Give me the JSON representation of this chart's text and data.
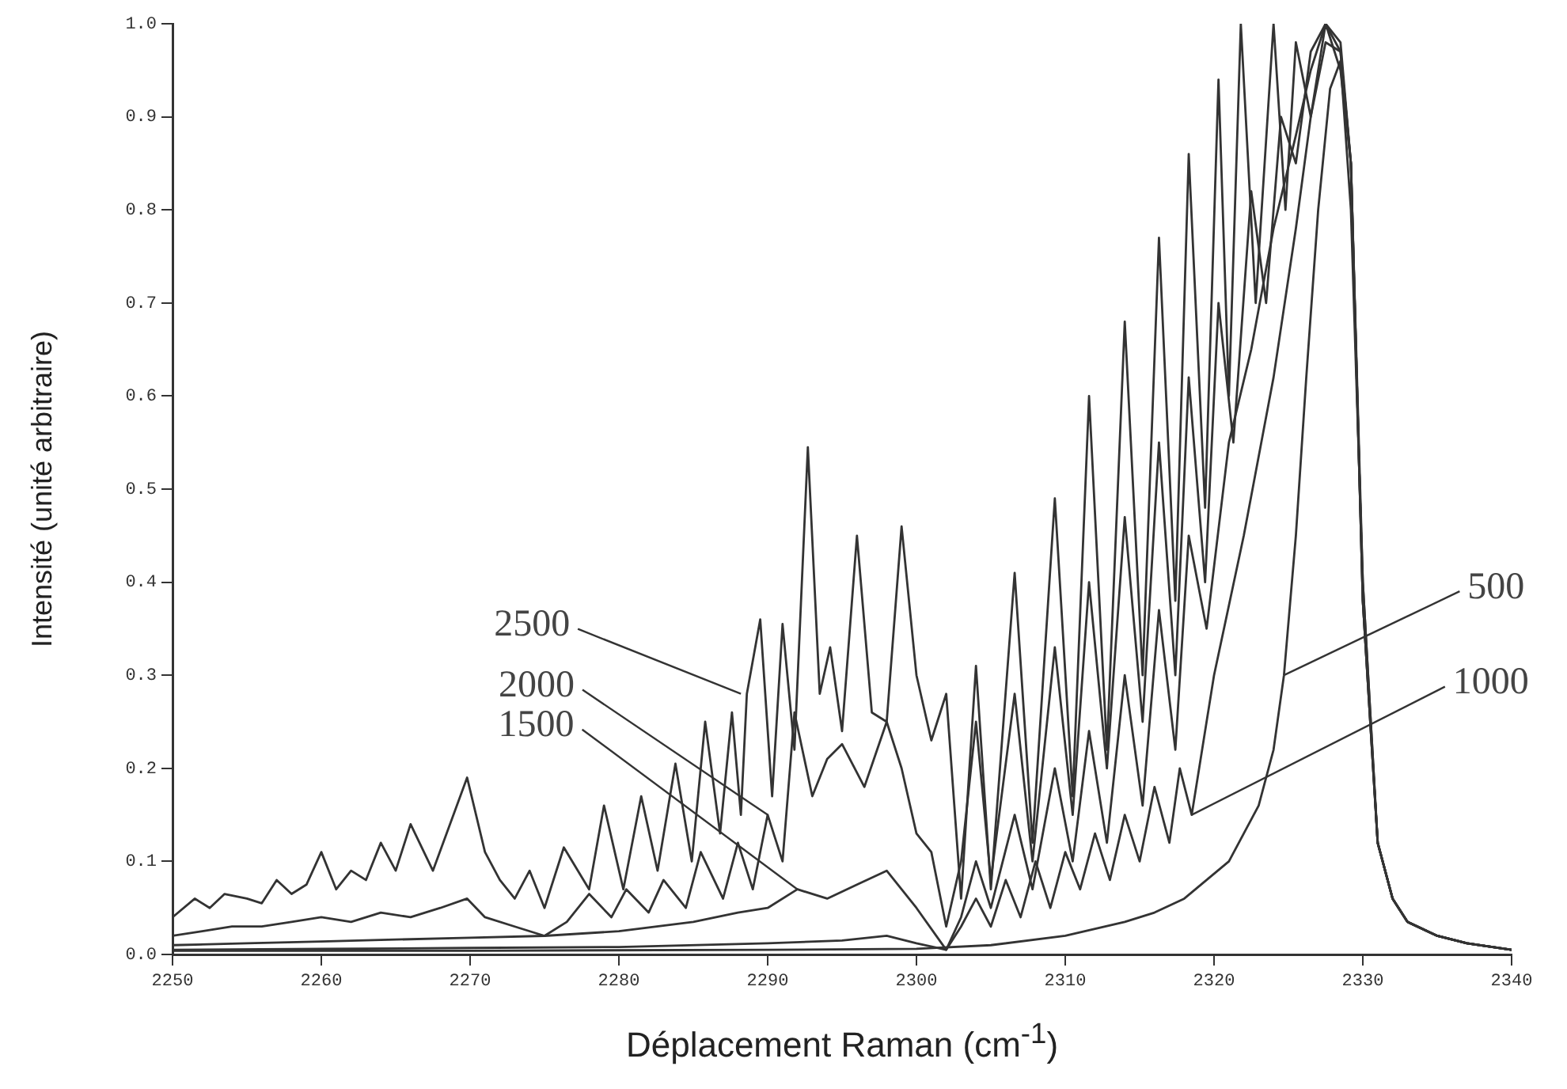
{
  "chart_data": {
    "type": "line",
    "xlabel": "Déplacement Raman (cm$^{-1}$)",
    "ylabel": "Intensité (unité arbitraire)",
    "xlim": [
      2250,
      2340
    ],
    "xticks": [
      2250,
      2260,
      2270,
      2280,
      2290,
      2300,
      2310,
      2320,
      2330,
      2340
    ],
    "ylim": [
      0,
      1
    ],
    "yticks": [
      {
        "value": 0,
        "label": "0.0"
      },
      0.1,
      0.2,
      0.3,
      0.4,
      0.5,
      0.6,
      0.7,
      0.8,
      0.9,
      {
        "value": 1,
        "label": "1.0"
      }
    ],
    "grid": false,
    "legend": false,
    "marker": "none",
    "line_style": "solid",
    "series": [
      {
        "color": "#333333",
        "x": [
          2250,
          2251.5,
          2252.5,
          2253.5,
          2255,
          2256,
          2257,
          2258,
          2259,
          2260,
          2261,
          2262,
          2263,
          2264,
          2265,
          2266,
          2267.5,
          2269.8,
          2271,
          2272,
          2273,
          2274,
          2275,
          2276.3,
          2278,
          2279,
          2280.3,
          2281.5,
          2282.6,
          2283.8,
          2284.9,
          2285.8,
          2286.8,
          2287.6,
          2288.2,
          2288.6,
          2289.5,
          2290.3,
          2291,
          2291.8,
          2292.7,
          2293.5,
          2294.2,
          2295,
          2296,
          2297,
          2298,
          2299,
          2300,
          2301,
          2302,
          2303,
          2304,
          2305,
          2306.6,
          2307.8,
          2309.3,
          2310.5,
          2311.6,
          2312.8,
          2314,
          2315.2,
          2316.3,
          2317.4,
          2318.3,
          2319.4,
          2320.3,
          2321,
          2321.8,
          2322.8,
          2324,
          2324.8,
          2325.5,
          2326.5,
          2327.5,
          2328.5,
          2329.2,
          2330,
          2331,
          2332,
          2333,
          2335,
          2337,
          2340
        ],
        "values": [
          0.04,
          0.06,
          0.05,
          0.065,
          0.06,
          0.055,
          0.08,
          0.065,
          0.075,
          0.11,
          0.07,
          0.09,
          0.08,
          0.12,
          0.09,
          0.14,
          0.09,
          0.19,
          0.11,
          0.08,
          0.06,
          0.09,
          0.05,
          0.115,
          0.07,
          0.16,
          0.07,
          0.17,
          0.09,
          0.205,
          0.1,
          0.25,
          0.13,
          0.26,
          0.15,
          0.28,
          0.36,
          0.17,
          0.355,
          0.22,
          0.545,
          0.28,
          0.33,
          0.24,
          0.45,
          0.26,
          0.25,
          0.46,
          0.3,
          0.23,
          0.28,
          0.06,
          0.31,
          0.07,
          0.41,
          0.12,
          0.49,
          0.17,
          0.6,
          0.22,
          0.68,
          0.3,
          0.77,
          0.38,
          0.86,
          0.48,
          0.94,
          0.6,
          1.0,
          0.7,
          1.0,
          0.8,
          0.98,
          0.9,
          1.0,
          0.95,
          0.85,
          0.4,
          0.12,
          0.06,
          0.035,
          0.02,
          0.012,
          0.005
        ]
      },
      {
        "color": "#333333",
        "x": [
          2250,
          2252,
          2254,
          2256,
          2258,
          2260,
          2262,
          2264,
          2266,
          2268,
          2269.8,
          2271,
          2273,
          2275,
          2276.5,
          2278,
          2279.5,
          2280.5,
          2282,
          2283,
          2284.5,
          2285.5,
          2287,
          2288,
          2289,
          2290,
          2291,
          2291.8,
          2293,
          2294,
          2295,
          2296.5,
          2298,
          2299,
          2300,
          2301,
          2302,
          2303,
          2304,
          2305,
          2306.6,
          2307.8,
          2309.3,
          2310.5,
          2311.6,
          2312.8,
          2314,
          2315.2,
          2316.3,
          2317.4,
          2318.3,
          2319.4,
          2320.3,
          2321.3,
          2322.5,
          2323.5,
          2324.5,
          2325.5,
          2326.5,
          2327.5,
          2328.5,
          2329.2,
          2330,
          2331,
          2332,
          2333,
          2335,
          2337,
          2340
        ],
        "values": [
          0.02,
          0.025,
          0.03,
          0.03,
          0.035,
          0.04,
          0.035,
          0.045,
          0.04,
          0.05,
          0.06,
          0.04,
          0.03,
          0.02,
          0.035,
          0.065,
          0.04,
          0.07,
          0.045,
          0.08,
          0.05,
          0.11,
          0.06,
          0.12,
          0.07,
          0.15,
          0.1,
          0.26,
          0.17,
          0.21,
          0.226,
          0.18,
          0.25,
          0.2,
          0.13,
          0.11,
          0.03,
          0.1,
          0.25,
          0.08,
          0.28,
          0.1,
          0.33,
          0.15,
          0.4,
          0.2,
          0.47,
          0.25,
          0.55,
          0.3,
          0.62,
          0.4,
          0.7,
          0.55,
          0.82,
          0.7,
          0.9,
          0.85,
          0.97,
          1.0,
          0.98,
          0.85,
          0.38,
          0.12,
          0.06,
          0.035,
          0.02,
          0.012,
          0.005
        ]
      },
      {
        "color": "#333333",
        "x": [
          2250,
          2255,
          2260,
          2265,
          2270,
          2275,
          2280,
          2285,
          2288,
          2290,
          2292,
          2294,
          2296,
          2298,
          2300,
          2302,
          2303,
          2304,
          2305,
          2306.6,
          2307.8,
          2309.3,
          2310.5,
          2311.6,
          2312.8,
          2314,
          2315.2,
          2316.3,
          2317.4,
          2318.3,
          2319.5,
          2321,
          2322.5,
          2324,
          2325.5,
          2326.5,
          2327.5,
          2328.5,
          2329.2,
          2330,
          2331,
          2332,
          2333,
          2335,
          2337,
          2340
        ],
        "values": [
          0.01,
          0.012,
          0.014,
          0.016,
          0.018,
          0.02,
          0.025,
          0.035,
          0.045,
          0.05,
          0.07,
          0.06,
          0.075,
          0.09,
          0.05,
          0.005,
          0.04,
          0.1,
          0.05,
          0.15,
          0.07,
          0.2,
          0.1,
          0.24,
          0.12,
          0.3,
          0.16,
          0.37,
          0.22,
          0.45,
          0.35,
          0.55,
          0.65,
          0.78,
          0.88,
          0.95,
          1.0,
          0.97,
          0.85,
          0.38,
          0.12,
          0.06,
          0.035,
          0.02,
          0.012,
          0.005
        ]
      },
      {
        "color": "#333333",
        "x": [
          2250,
          2260,
          2270,
          2280,
          2290,
          2295,
          2298,
          2300,
          2302,
          2303,
          2304,
          2305,
          2306,
          2307,
          2308,
          2309,
          2310,
          2311,
          2312,
          2313,
          2314,
          2315,
          2316,
          2317,
          2317.7,
          2318.5,
          2320,
          2322,
          2324,
          2325.5,
          2326.5,
          2327.5,
          2328.5,
          2329.2,
          2330,
          2331,
          2332,
          2333,
          2335,
          2337,
          2340
        ],
        "values": [
          0.005,
          0.006,
          0.007,
          0.008,
          0.012,
          0.015,
          0.02,
          0.012,
          0.005,
          0.03,
          0.06,
          0.03,
          0.08,
          0.04,
          0.1,
          0.05,
          0.11,
          0.07,
          0.13,
          0.08,
          0.15,
          0.1,
          0.18,
          0.12,
          0.2,
          0.15,
          0.3,
          0.45,
          0.62,
          0.78,
          0.9,
          0.98,
          0.97,
          0.85,
          0.38,
          0.12,
          0.06,
          0.035,
          0.02,
          0.012,
          0.005
        ]
      },
      {
        "color": "#333333",
        "x": [
          2250,
          2270,
          2290,
          2300,
          2305,
          2310,
          2314,
          2316,
          2318,
          2319.5,
          2321,
          2322,
          2323,
          2324,
          2324.7,
          2325.5,
          2326.2,
          2327,
          2327.8,
          2328.5,
          2329.2,
          2330,
          2331,
          2332,
          2333,
          2335,
          2337,
          2340
        ],
        "values": [
          0.004,
          0.004,
          0.005,
          0.006,
          0.01,
          0.02,
          0.035,
          0.045,
          0.06,
          0.08,
          0.1,
          0.13,
          0.16,
          0.22,
          0.3,
          0.45,
          0.62,
          0.8,
          0.93,
          0.96,
          0.8,
          0.4,
          0.12,
          0.06,
          0.035,
          0.02,
          0.012,
          0.005
        ]
      }
    ],
    "annotations": [
      {
        "text": "2500",
        "x": 2288.2,
        "y": 0.28
      },
      {
        "text": "2000",
        "x": 2290,
        "y": 0.15
      },
      {
        "text": "1500",
        "x": 2292,
        "y": 0.07
      },
      {
        "text": "500",
        "x": 2324.7,
        "y": 0.3
      },
      {
        "text": "1000",
        "x": 2318.5,
        "y": 0.15
      }
    ]
  }
}
